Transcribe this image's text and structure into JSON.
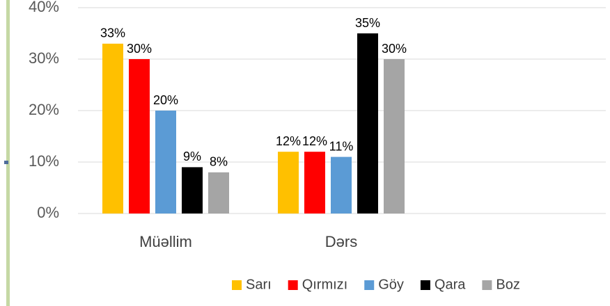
{
  "chart_data": {
    "type": "bar",
    "categories": [
      "Müəllim",
      "Dərs"
    ],
    "series": [
      {
        "name": "Sarı",
        "color": "#ffc000",
        "values": [
          33,
          12
        ],
        "value_labels": [
          "33%",
          "12%"
        ]
      },
      {
        "name": "Qırmızı",
        "color": "#ff0000",
        "values": [
          30,
          12
        ],
        "value_labels": [
          "30%",
          "12%"
        ]
      },
      {
        "name": "Göy",
        "color": "#5b9bd5",
        "values": [
          20,
          11
        ],
        "value_labels": [
          "20%",
          "11%"
        ]
      },
      {
        "name": "Qara",
        "color": "#000000",
        "values": [
          9,
          35
        ],
        "value_labels": [
          "9%",
          "35%"
        ]
      },
      {
        "name": "Boz",
        "color": "#a5a5a5",
        "values": [
          8,
          30
        ],
        "value_labels": [
          "8%",
          "30%"
        ]
      }
    ],
    "ylim": [
      0,
      40
    ],
    "yticks": [
      {
        "value": 0,
        "label": "0%"
      },
      {
        "value": 10,
        "label": "10%"
      },
      {
        "value": 20,
        "label": "20%"
      },
      {
        "value": 30,
        "label": "30%"
      },
      {
        "value": 40,
        "label": "40%"
      }
    ],
    "grid": true,
    "legend": "bottom"
  }
}
